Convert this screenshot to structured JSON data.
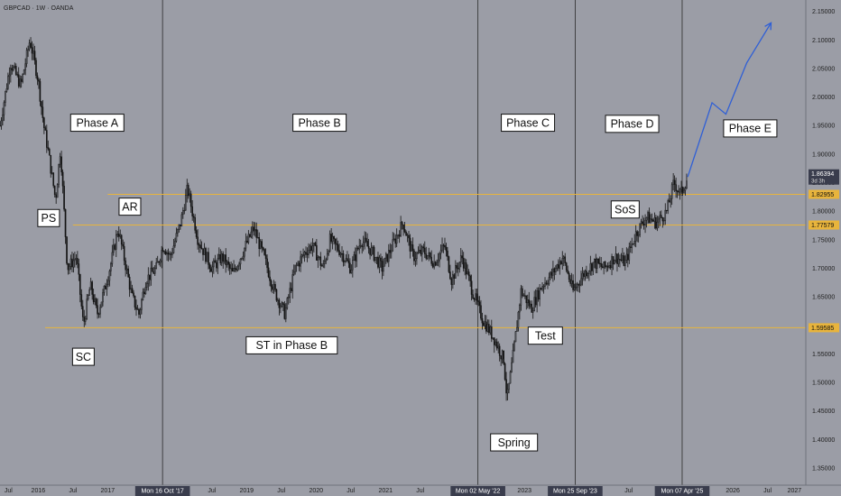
{
  "symbol": "GBPCAD · 1W · OANDA",
  "colors": {
    "background": "#9b9da6",
    "candle": "#141414",
    "level": "#e8b43c",
    "projection": "#2f5fd6",
    "axis_text": "#1e1e1e",
    "price_tag": "#3a3d4d"
  },
  "chart_data": {
    "type": "candlestick",
    "title": "GBPCAD · 1W · OANDA",
    "y_axis": {
      "side": "right",
      "range": [
        1.32,
        2.17
      ],
      "ticks": [
        "2.15000",
        "2.10000",
        "2.05000",
        "2.00000",
        "1.95000",
        "1.90000",
        "1.85000",
        "1.80000",
        "1.75000",
        "1.70000",
        "1.65000",
        "1.60000",
        "1.55000",
        "1.50000",
        "1.45000",
        "1.40000",
        "1.35000"
      ]
    },
    "x_axis": {
      "range": [
        2015.45,
        2027.05
      ],
      "ticks": [
        {
          "x": 2015.5,
          "label": "Jul"
        },
        {
          "x": 2016.0,
          "label": "2016"
        },
        {
          "x": 2016.5,
          "label": "Jul"
        },
        {
          "x": 2017.0,
          "label": "2017"
        },
        {
          "x": 2018.5,
          "label": "Jul"
        },
        {
          "x": 2019.0,
          "label": "2019"
        },
        {
          "x": 2019.5,
          "label": "Jul"
        },
        {
          "x": 2020.0,
          "label": "2020"
        },
        {
          "x": 2020.5,
          "label": "Jul"
        },
        {
          "x": 2021.0,
          "label": "2021"
        },
        {
          "x": 2021.5,
          "label": "Jul"
        },
        {
          "x": 2023.0,
          "label": "2023"
        },
        {
          "x": 2024.5,
          "label": "Jul"
        },
        {
          "x": 2025.5,
          "label": "Jul"
        },
        {
          "x": 2026.0,
          "label": "2026"
        },
        {
          "x": 2026.5,
          "label": "Jul"
        },
        {
          "x": 2027.0,
          "label": "2027"
        }
      ]
    },
    "vertical_markers": [
      {
        "x": 2017.79,
        "label": "Mon 16 Oct '17"
      },
      {
        "x": 2022.33,
        "label": "Mon 02 May '22"
      },
      {
        "x": 2023.73,
        "label": "Mon 25 Sep '23"
      },
      {
        "x": 2025.27,
        "label": "Mon 07 Apr '25"
      }
    ],
    "levels": [
      {
        "y": 1.82955,
        "label": "1.82955",
        "x_start": 2017.0
      },
      {
        "y": 1.77579,
        "label": "1.77579",
        "x_start": 2016.5
      },
      {
        "y": 1.59585,
        "label": "1.59585",
        "x_start": 2016.1
      }
    ],
    "current_price": {
      "value": 1.86394,
      "label": "1.86394",
      "sublabel": "3d 3h"
    },
    "series_path": [
      [
        2015.45,
        1.95
      ],
      [
        2015.6,
        2.06
      ],
      [
        2015.75,
        2.02
      ],
      [
        2015.88,
        2.1
      ],
      [
        2016.0,
        2.03
      ],
      [
        2016.08,
        1.95
      ],
      [
        2016.15,
        1.9
      ],
      [
        2016.25,
        1.82
      ],
      [
        2016.32,
        1.91
      ],
      [
        2016.42,
        1.7
      ],
      [
        2016.55,
        1.72
      ],
      [
        2016.65,
        1.6
      ],
      [
        2016.75,
        1.67
      ],
      [
        2016.85,
        1.62
      ],
      [
        2016.95,
        1.66
      ],
      [
        2017.05,
        1.71
      ],
      [
        2017.15,
        1.77
      ],
      [
        2017.25,
        1.71
      ],
      [
        2017.35,
        1.65
      ],
      [
        2017.45,
        1.62
      ],
      [
        2017.55,
        1.68
      ],
      [
        2017.7,
        1.7
      ],
      [
        2017.8,
        1.74
      ],
      [
        2017.9,
        1.72
      ],
      [
        2018.05,
        1.78
      ],
      [
        2018.15,
        1.84
      ],
      [
        2018.3,
        1.75
      ],
      [
        2018.5,
        1.7
      ],
      [
        2018.65,
        1.72
      ],
      [
        2018.8,
        1.69
      ],
      [
        2018.95,
        1.73
      ],
      [
        2019.1,
        1.77
      ],
      [
        2019.25,
        1.72
      ],
      [
        2019.4,
        1.66
      ],
      [
        2019.55,
        1.62
      ],
      [
        2019.7,
        1.7
      ],
      [
        2019.85,
        1.73
      ],
      [
        2019.95,
        1.74
      ],
      [
        2020.1,
        1.7
      ],
      [
        2020.2,
        1.75
      ],
      [
        2020.35,
        1.73
      ],
      [
        2020.5,
        1.7
      ],
      [
        2020.65,
        1.75
      ],
      [
        2020.8,
        1.73
      ],
      [
        2020.95,
        1.7
      ],
      [
        2021.1,
        1.74
      ],
      [
        2021.25,
        1.78
      ],
      [
        2021.4,
        1.72
      ],
      [
        2021.55,
        1.73
      ],
      [
        2021.7,
        1.71
      ],
      [
        2021.85,
        1.74
      ],
      [
        2021.95,
        1.68
      ],
      [
        2022.1,
        1.72
      ],
      [
        2022.25,
        1.66
      ],
      [
        2022.4,
        1.61
      ],
      [
        2022.55,
        1.58
      ],
      [
        2022.7,
        1.54
      ],
      [
        2022.75,
        1.47
      ],
      [
        2022.85,
        1.56
      ],
      [
        2022.95,
        1.66
      ],
      [
        2023.1,
        1.63
      ],
      [
        2023.25,
        1.67
      ],
      [
        2023.4,
        1.69
      ],
      [
        2023.55,
        1.72
      ],
      [
        2023.7,
        1.66
      ],
      [
        2023.85,
        1.69
      ],
      [
        2024.0,
        1.71
      ],
      [
        2024.15,
        1.7
      ],
      [
        2024.3,
        1.72
      ],
      [
        2024.45,
        1.71
      ],
      [
        2024.6,
        1.76
      ],
      [
        2024.75,
        1.79
      ],
      [
        2024.9,
        1.78
      ],
      [
        2025.05,
        1.8
      ],
      [
        2025.15,
        1.85
      ],
      [
        2025.25,
        1.83
      ],
      [
        2025.35,
        1.86
      ]
    ],
    "projection": [
      [
        2025.35,
        1.86
      ],
      [
        2025.7,
        1.99
      ],
      [
        2025.9,
        1.97
      ],
      [
        2026.2,
        2.06
      ],
      [
        2026.55,
        2.13
      ]
    ],
    "annotations": [
      {
        "text": "Phase A",
        "x": 2016.85,
        "y": 1.955
      },
      {
        "text": "Phase B",
        "x": 2020.05,
        "y": 1.955
      },
      {
        "text": "Phase C",
        "x": 2023.05,
        "y": 1.955
      },
      {
        "text": "Phase D",
        "x": 2024.55,
        "y": 1.953
      },
      {
        "text": "Phase E",
        "x": 2026.25,
        "y": 1.945
      },
      {
        "text": "PS",
        "x": 2016.15,
        "y": 1.788
      },
      {
        "text": "AR",
        "x": 2017.32,
        "y": 1.808
      },
      {
        "text": "SC",
        "x": 2016.65,
        "y": 1.545
      },
      {
        "text": "ST in Phase B",
        "x": 2019.65,
        "y": 1.565
      },
      {
        "text": "SoS",
        "x": 2024.45,
        "y": 1.803
      },
      {
        "text": "Test",
        "x": 2023.3,
        "y": 1.582
      },
      {
        "text": "Spring",
        "x": 2022.85,
        "y": 1.395
      }
    ]
  }
}
